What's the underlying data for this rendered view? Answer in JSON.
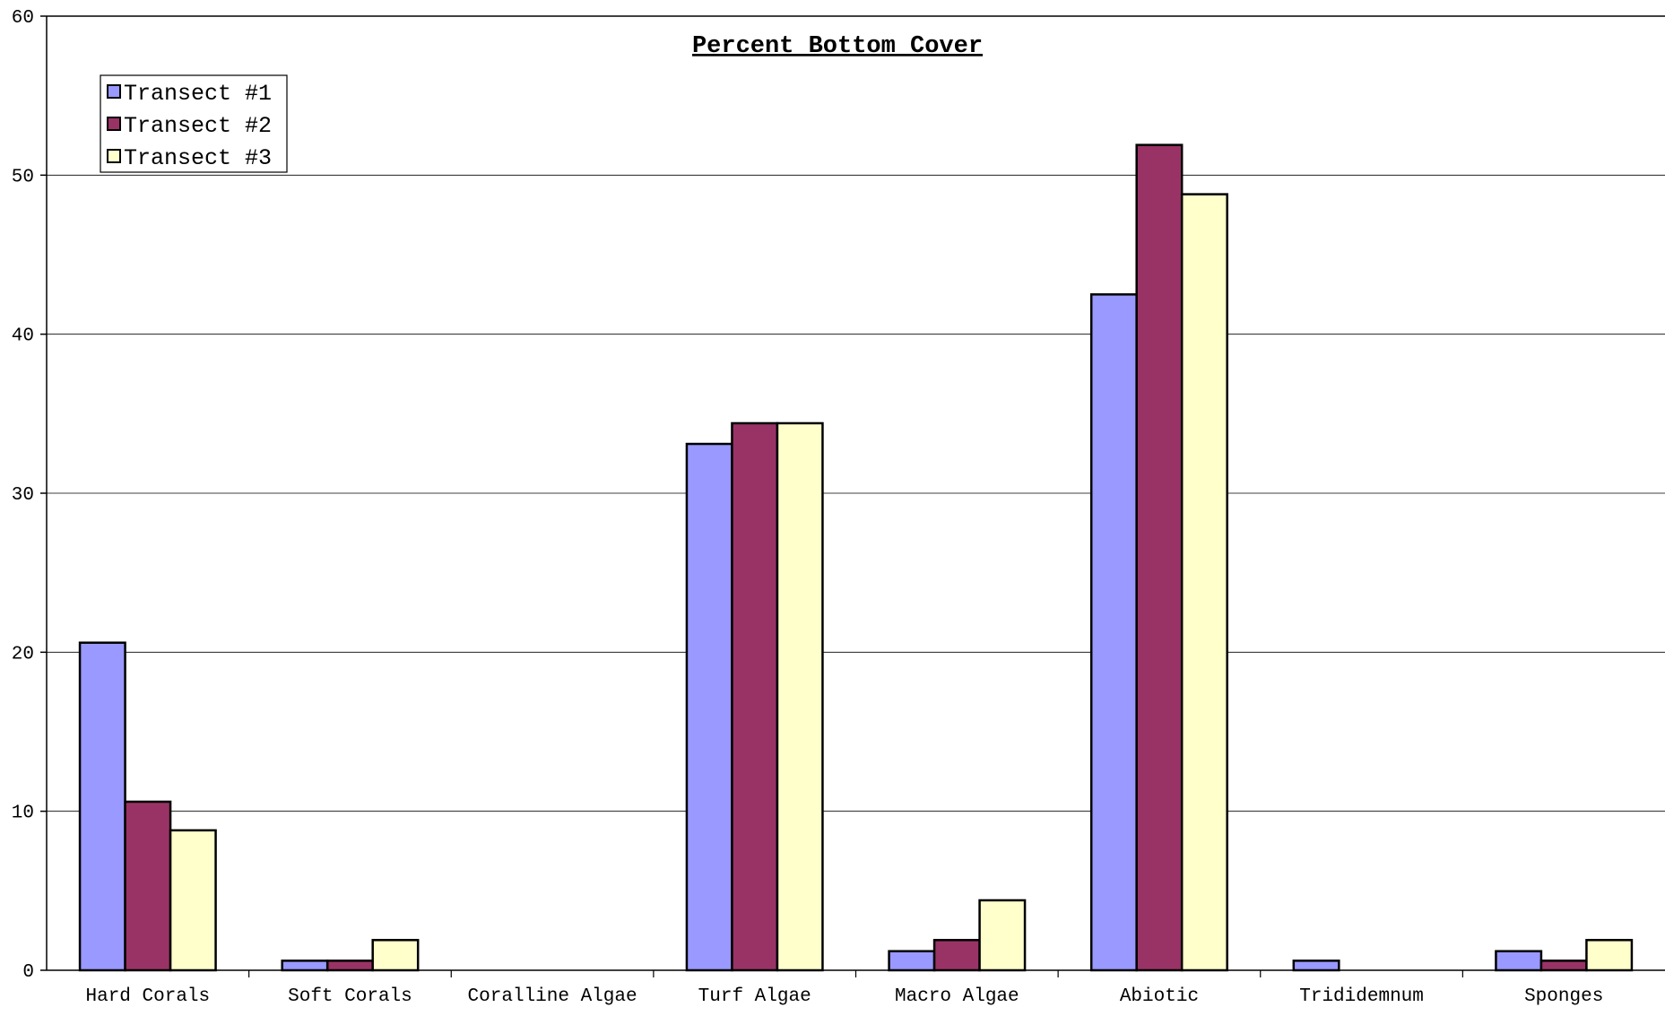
{
  "chart_data": {
    "type": "bar",
    "title": "Percent Bottom Cover",
    "xlabel": "",
    "ylabel": "",
    "ylim": [
      0,
      60
    ],
    "yticks": [
      "0",
      "10",
      "20",
      "30",
      "40",
      "50",
      "60"
    ],
    "grid": true,
    "legend_placement": "top-left",
    "categories": [
      "Hard Corals",
      "Soft Corals",
      "Coralline Algae",
      "Turf Algae",
      "Macro Algae",
      "Abiotic",
      "Trididemnum",
      "Sponges"
    ],
    "series": [
      {
        "name": "Transect #1",
        "color": "#9999ff",
        "values": [
          20.6,
          0.6,
          0,
          33.1,
          1.2,
          42.5,
          0.6,
          1.2
        ]
      },
      {
        "name": "Transect #2",
        "color": "#993366",
        "values": [
          10.6,
          0.6,
          0,
          34.4,
          1.9,
          51.9,
          0,
          0.6
        ]
      },
      {
        "name": "Transect #3",
        "color": "#ffffcc",
        "values": [
          8.8,
          1.9,
          0,
          34.4,
          4.4,
          48.8,
          0,
          1.9
        ]
      }
    ]
  }
}
